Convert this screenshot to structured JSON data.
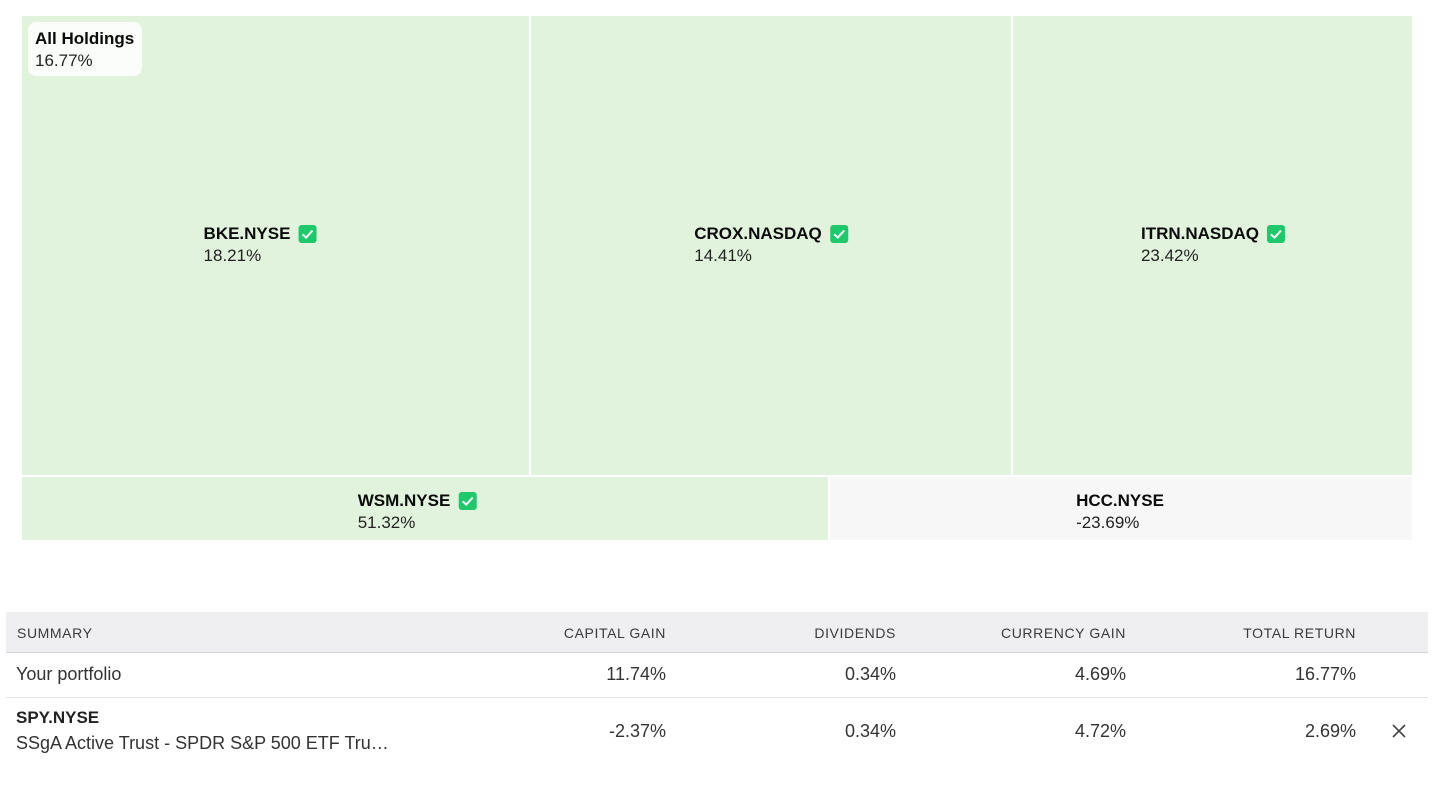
{
  "treemap": {
    "all_holdings": {
      "label": "All Holdings",
      "value": "16.77%"
    },
    "tiles": [
      {
        "name": "BKE.NYSE",
        "value": "18.21%",
        "checked": true
      },
      {
        "name": "CROX.NASDAQ",
        "value": "14.41%",
        "checked": true
      },
      {
        "name": "ITRN.NASDAQ",
        "value": "23.42%",
        "checked": true
      },
      {
        "name": "WSM.NYSE",
        "value": "51.32%",
        "checked": true
      },
      {
        "name": "HCC.NYSE",
        "value": "-23.69%",
        "checked": false
      }
    ],
    "colors": {
      "positive": "#e1f3dc",
      "negative": "#f7f7f8",
      "check": "#1ec96b"
    }
  },
  "summary": {
    "headers": {
      "summary": "SUMMARY",
      "capital_gain": "CAPITAL GAIN",
      "dividends": "DIVIDENDS",
      "currency_gain": "CURRENCY GAIN",
      "total_return": "TOTAL RETURN"
    },
    "rows": [
      {
        "label": "Your portfolio",
        "capital_gain": "11.74%",
        "dividends": "0.34%",
        "currency_gain": "4.69%",
        "total_return": "16.77%"
      },
      {
        "ticker": "SPY.NYSE",
        "fullname": "SSgA Active Trust - SPDR S&P 500 ETF Tru…",
        "capital_gain": "-2.37%",
        "dividends": "0.34%",
        "currency_gain": "4.72%",
        "total_return": "2.69%",
        "remove_icon": "close-icon"
      }
    ]
  }
}
